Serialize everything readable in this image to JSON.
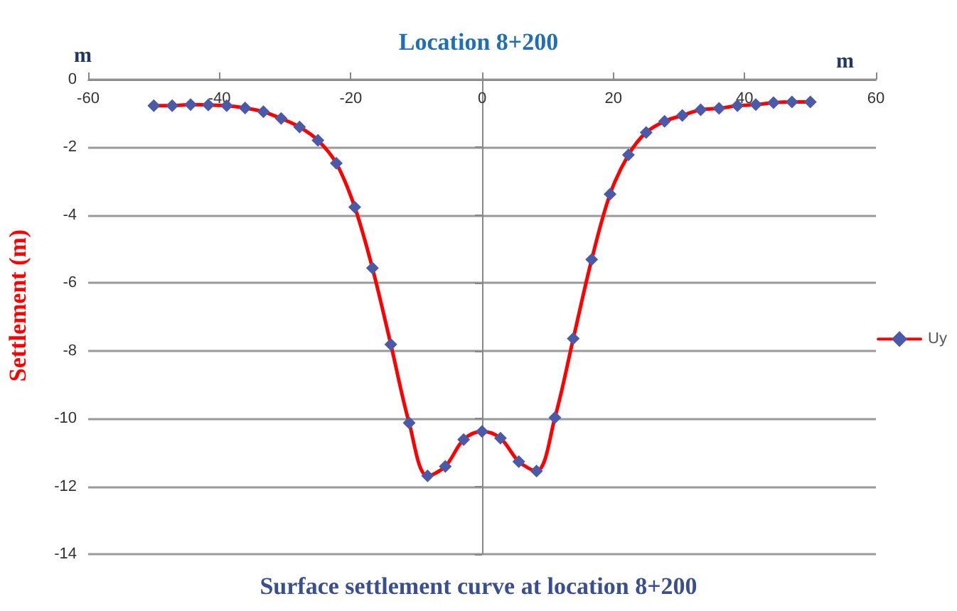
{
  "chart_data": {
    "type": "line",
    "title": "Location 8+200",
    "subtitle": "Surface settlement curve at location 8+200",
    "xlabel": "m",
    "ylabel": "Settlement (m)",
    "annotations": [
      "m"
    ],
    "series": [
      {
        "name": "Uy",
        "color": "#ff0000",
        "x": [
          -50,
          -47.2,
          -44.4,
          -41.7,
          -38.9,
          -36.1,
          -33.3,
          -30.6,
          -27.8,
          -25,
          -22.2,
          -19.4,
          -16.7,
          -13.9,
          -11.1,
          -8.3,
          -5.6,
          -2.8,
          0,
          2.8,
          5.6,
          8.3,
          11.1,
          13.9,
          16.7,
          19.5,
          22.3,
          25,
          27.8,
          30.5,
          33.3,
          36.1,
          38.9,
          41.7,
          44.4,
          47.2,
          50
        ],
        "values": [
          -0.77,
          -0.77,
          -0.74,
          -0.75,
          -0.77,
          -0.84,
          -0.95,
          -1.15,
          -1.4,
          -1.79,
          -2.47,
          -3.76,
          -5.56,
          -7.81,
          -10.13,
          -11.69,
          -11.41,
          -10.62,
          -10.38,
          -10.58,
          -11.27,
          -11.55,
          -9.97,
          -7.64,
          -5.31,
          -3.38,
          -2.22,
          -1.56,
          -1.23,
          -1.06,
          -0.89,
          -0.85,
          -0.77,
          -0.74,
          -0.68,
          -0.66,
          -0.66
        ]
      }
    ],
    "xlim": [
      -60,
      60
    ],
    "xticks": [
      -60,
      -40,
      -20,
      0,
      20,
      40,
      60
    ],
    "ylim": [
      -14,
      0
    ],
    "yticks": [
      -14,
      -12,
      -10,
      -8,
      -6,
      -4,
      -2,
      0
    ],
    "grid": "y",
    "legend": "right",
    "marker": "diamond",
    "line_style": "solid"
  }
}
